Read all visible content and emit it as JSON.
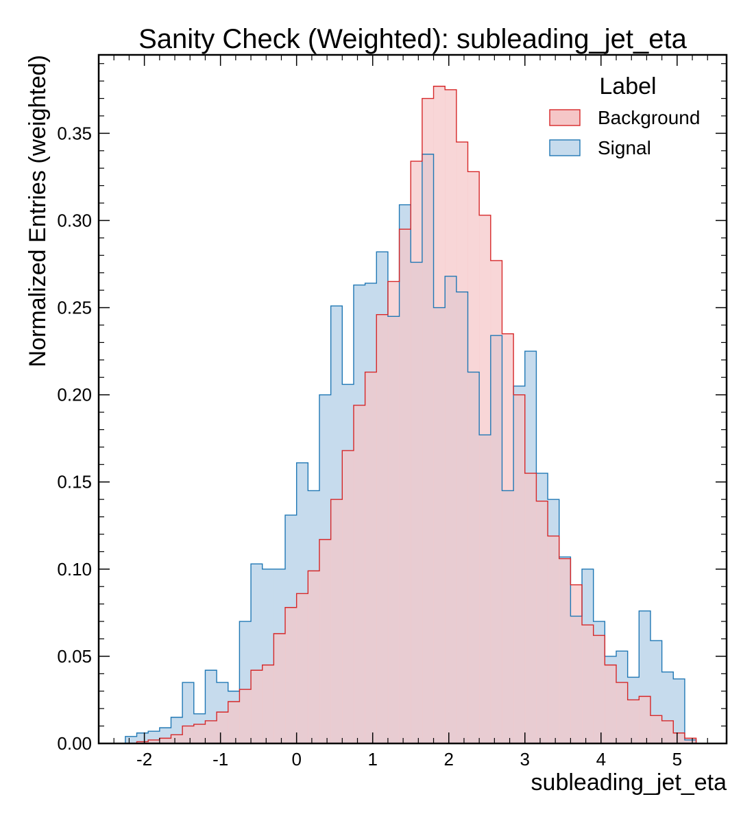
{
  "chart_data": {
    "type": "step-histogram",
    "title": "Sanity Check (Weighted): subleading_jet_eta",
    "xlabel": "subleading_jet_eta",
    "ylabel": "Normalized Entries (weighted)",
    "xlim": [
      -2.6,
      5.65
    ],
    "ylim": [
      0.0,
      0.395
    ],
    "x_ticks": [
      -2,
      -1,
      0,
      1,
      2,
      3,
      4,
      5
    ],
    "x_tick_labels": [
      "-2",
      "-1",
      "0",
      "1",
      "2",
      "3",
      "4",
      "5"
    ],
    "y_ticks": [
      0.0,
      0.05,
      0.1,
      0.15,
      0.2,
      0.25,
      0.3,
      0.35
    ],
    "y_tick_labels": [
      "0.00",
      "0.05",
      "0.10",
      "0.15",
      "0.20",
      "0.25",
      "0.30",
      "0.35"
    ],
    "grid": false,
    "legend": {
      "title": "Label",
      "placement": "top-right"
    },
    "bin_edges": [
      -2.25,
      -2.1,
      -1.95,
      -1.8,
      -1.65,
      -1.5,
      -1.35,
      -1.2,
      -1.05,
      -0.9,
      -0.75,
      -0.6,
      -0.45,
      -0.3,
      -0.15,
      0.0,
      0.15,
      0.3,
      0.45,
      0.6,
      0.75,
      0.9,
      1.05,
      1.2,
      1.35,
      1.5,
      1.65,
      1.8,
      1.95,
      2.1,
      2.25,
      2.4,
      2.55,
      2.7,
      2.85,
      3.0,
      3.15,
      3.3,
      3.45,
      3.6,
      3.75,
      3.9,
      4.05,
      4.2,
      4.35,
      4.5,
      4.65,
      4.8,
      4.95,
      5.1,
      5.25
    ],
    "series": [
      {
        "name": "Signal",
        "color": "#1f77b4",
        "fill": "#c6dbed",
        "values": [
          0.004,
          0.006,
          0.007,
          0.009,
          0.015,
          0.035,
          0.017,
          0.042,
          0.035,
          0.03,
          0.07,
          0.103,
          0.1,
          0.1,
          0.131,
          0.161,
          0.145,
          0.2,
          0.251,
          0.206,
          0.263,
          0.264,
          0.282,
          0.245,
          0.309,
          0.276,
          0.338,
          0.25,
          0.268,
          0.259,
          0.213,
          0.177,
          0.234,
          0.145,
          0.205,
          0.225,
          0.155,
          0.14,
          0.107,
          0.073,
          0.1,
          0.07,
          0.05,
          0.053,
          0.038,
          0.076,
          0.059,
          0.041,
          0.037,
          0.002,
          0.0
        ]
      },
      {
        "name": "Background",
        "color": "#d62728",
        "fill": "#f5c6c7",
        "values": [
          0.0,
          0.001,
          0.002,
          0.003,
          0.005,
          0.01,
          0.011,
          0.013,
          0.018,
          0.024,
          0.031,
          0.042,
          0.045,
          0.063,
          0.078,
          0.086,
          0.099,
          0.117,
          0.14,
          0.168,
          0.194,
          0.213,
          0.246,
          0.265,
          0.295,
          0.334,
          0.37,
          0.377,
          0.375,
          0.345,
          0.328,
          0.303,
          0.277,
          0.235,
          0.2,
          0.155,
          0.139,
          0.119,
          0.106,
          0.091,
          0.068,
          0.062,
          0.045,
          0.035,
          0.025,
          0.027,
          0.016,
          0.013,
          0.006,
          0.003,
          0.0
        ]
      }
    ]
  }
}
